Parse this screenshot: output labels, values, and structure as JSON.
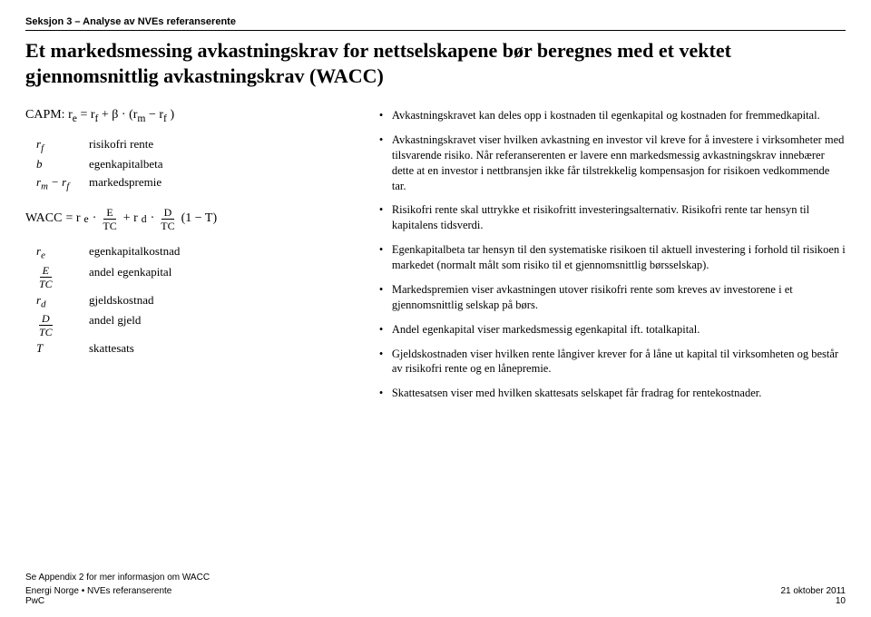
{
  "section_label": "Seksjon 3 – Analyse av NVEs referanserente",
  "title": "Et markedsmessing avkastningskrav for nettselskapene bør beregnes med et vektet gjennomsnittlig avkastningskrav (WACC)",
  "capm": {
    "prefix": "CAPM:",
    "expr_html": "r<sub>e</sub> = r<sub>f</sub> + β · (r<sub>m</sub> − r<sub>f</sub> )"
  },
  "capm_defs": [
    {
      "sym": "r<sub>f</sub>",
      "txt": "risikofri rente"
    },
    {
      "sym": "b",
      "txt": "egenkapitalbeta"
    },
    {
      "sym": "r<sub>m</sub> − r<sub>f</sub>",
      "txt": "markedspremie"
    }
  ],
  "wacc": {
    "prefix": "WACC",
    "eq": " = r",
    "e_sub": "e",
    "dot": " · ",
    "frac1_num": "E",
    "frac1_den": "TC",
    "plus": " + r",
    "d_sub": "d",
    "frac2_num": "D",
    "frac2_den": "TC",
    "tail": " (1 − T)"
  },
  "wacc_defs": [
    {
      "sym": "r<sub>e</sub>",
      "txt": "egenkapitalkostnad"
    },
    {
      "sym_frac": {
        "num": "E",
        "den": "TC"
      },
      "txt": "andel egenkapital"
    },
    {
      "sym": "r<sub>d</sub>",
      "txt": "gjeldskostnad"
    },
    {
      "sym_frac": {
        "num": "D",
        "den": "TC"
      },
      "txt": "andel gjeld"
    },
    {
      "sym": "T",
      "txt": "skattesats"
    }
  ],
  "bullets": [
    "Avkastningskravet kan deles opp i kostnaden til egenkapital og kostnaden for fremmedkapital.",
    "Avkastningskravet viser hvilken avkastning en investor vil kreve for å investere i virksomheter med tilsvarende risiko. Når referanserenten er lavere enn markedsmessig avkastningskrav innebærer dette at en investor i nettbransjen ikke får tilstrekkelig kompensasjon for risikoen vedkommende tar.",
    "Risikofri rente skal uttrykke et risikofritt investeringsalternativ. Risikofri rente tar hensyn til kapitalens tidsverdi.",
    "Egenkapitalbeta tar hensyn til den systematiske risikoen til aktuell investering i forhold til risikoen i markedet (normalt målt som risiko til et gjennomsnittlig børsselskap).",
    "Markedspremien viser avkastningen utover risikofri rente som kreves av investorene i et gjennomsnittlig selskap på børs.",
    "Andel egenkapital viser markedsmessig egenkapital ift. totalkapital.",
    "Gjeldskostnaden viser hvilken rente långiver krever for å låne ut kapital til virksomheten og består av risikofri rente og en lånepremie.",
    "Skattesatsen viser med hvilken skattesats selskapet får fradrag for rentekostnader."
  ],
  "footer": {
    "appendix": "Se Appendix 2 for mer informasjon om WACC",
    "left1": "Energi Norge • NVEs referanserente",
    "left2": "PwC",
    "date": "21 oktober 2011",
    "page": "10"
  }
}
